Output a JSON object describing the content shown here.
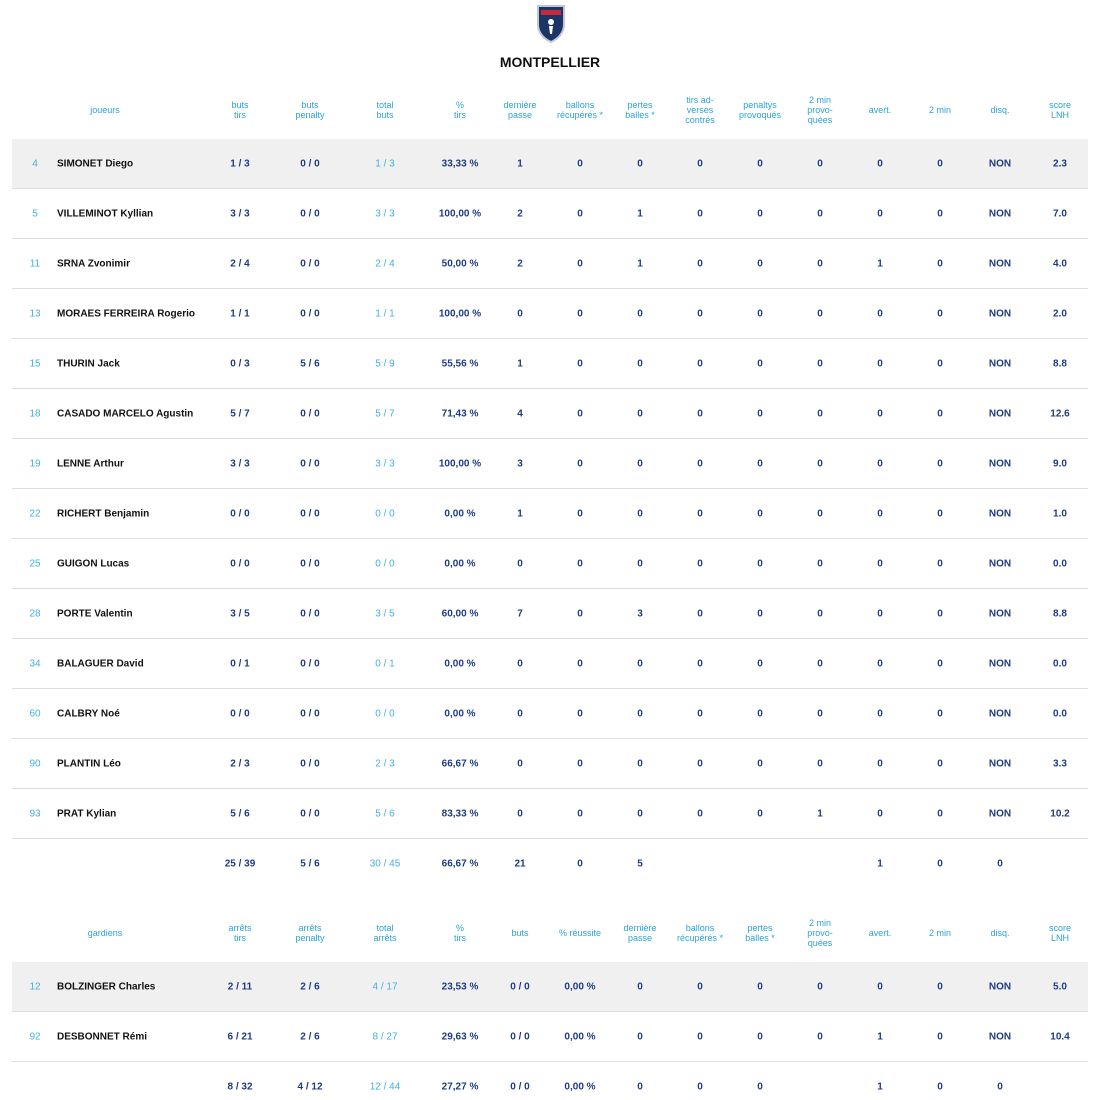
{
  "header": {
    "title": "MONTPELLIER"
  },
  "players": {
    "headers": [
      [
        "joueurs"
      ],
      [
        "buts",
        "tirs"
      ],
      [
        "buts",
        "penalty"
      ],
      [
        "total",
        "buts"
      ],
      [
        "%",
        "tirs"
      ],
      [
        "dernière",
        "passe"
      ],
      [
        "ballons",
        "récupérés *"
      ],
      [
        "pertes",
        "balles *"
      ],
      [
        "tirs ad-",
        "verses",
        "contrés"
      ],
      [
        "penaltys",
        "provoqués"
      ],
      [
        "2 min",
        "provo-",
        "quées"
      ],
      [
        "avert."
      ],
      [
        "2 min"
      ],
      [
        "disq."
      ],
      [
        "score",
        "LNH"
      ]
    ],
    "rows": [
      [
        "4",
        "SIMONET Diego",
        "1 / 3",
        "0 / 0",
        "1 / 3",
        "33,33 %",
        "1",
        "0",
        "0",
        "0",
        "0",
        "0",
        "0",
        "0",
        "NON",
        "2.3"
      ],
      [
        "5",
        "VILLEMINOT Kyllian",
        "3 / 3",
        "0 / 0",
        "3 / 3",
        "100,00 %",
        "2",
        "0",
        "1",
        "0",
        "0",
        "0",
        "0",
        "0",
        "NON",
        "7.0"
      ],
      [
        "11",
        "SRNA Zvonimir",
        "2 / 4",
        "0 / 0",
        "2 / 4",
        "50,00 %",
        "2",
        "0",
        "1",
        "0",
        "0",
        "0",
        "1",
        "0",
        "NON",
        "4.0"
      ],
      [
        "13",
        "MORAES FERREIRA Rogerio",
        "1 / 1",
        "0 / 0",
        "1 / 1",
        "100,00 %",
        "0",
        "0",
        "0",
        "0",
        "0",
        "0",
        "0",
        "0",
        "NON",
        "2.0"
      ],
      [
        "15",
        "THURIN Jack",
        "0 / 3",
        "5 / 6",
        "5 / 9",
        "55,56 %",
        "1",
        "0",
        "0",
        "0",
        "0",
        "0",
        "0",
        "0",
        "NON",
        "8.8"
      ],
      [
        "18",
        "CASADO MARCELO Agustin",
        "5 / 7",
        "0 / 0",
        "5 / 7",
        "71,43 %",
        "4",
        "0",
        "0",
        "0",
        "0",
        "0",
        "0",
        "0",
        "NON",
        "12.6"
      ],
      [
        "19",
        "LENNE Arthur",
        "3 / 3",
        "0 / 0",
        "3 / 3",
        "100,00 %",
        "3",
        "0",
        "0",
        "0",
        "0",
        "0",
        "0",
        "0",
        "NON",
        "9.0"
      ],
      [
        "22",
        "RICHERT Benjamin",
        "0 / 0",
        "0 / 0",
        "0 / 0",
        "0,00 %",
        "1",
        "0",
        "0",
        "0",
        "0",
        "0",
        "0",
        "0",
        "NON",
        "1.0"
      ],
      [
        "25",
        "GUIGON Lucas",
        "0 / 0",
        "0 / 0",
        "0 / 0",
        "0,00 %",
        "0",
        "0",
        "0",
        "0",
        "0",
        "0",
        "0",
        "0",
        "NON",
        "0.0"
      ],
      [
        "28",
        "PORTE Valentin",
        "3 / 5",
        "0 / 0",
        "3 / 5",
        "60,00 %",
        "7",
        "0",
        "3",
        "0",
        "0",
        "0",
        "0",
        "0",
        "NON",
        "8.8"
      ],
      [
        "34",
        "BALAGUER David",
        "0 / 1",
        "0 / 0",
        "0 / 1",
        "0,00 %",
        "0",
        "0",
        "0",
        "0",
        "0",
        "0",
        "0",
        "0",
        "NON",
        "0.0"
      ],
      [
        "60",
        "CALBRY Noé",
        "0 / 0",
        "0 / 0",
        "0 / 0",
        "0,00 %",
        "0",
        "0",
        "0",
        "0",
        "0",
        "0",
        "0",
        "0",
        "NON",
        "0.0"
      ],
      [
        "90",
        "PLANTIN Léo",
        "2 / 3",
        "0 / 0",
        "2 / 3",
        "66,67 %",
        "0",
        "0",
        "0",
        "0",
        "0",
        "0",
        "0",
        "0",
        "NON",
        "3.3"
      ],
      [
        "93",
        "PRAT Kylian",
        "5 / 6",
        "0 / 0",
        "5 / 6",
        "83,33 %",
        "0",
        "0",
        "0",
        "0",
        "0",
        "1",
        "0",
        "0",
        "NON",
        "10.2"
      ]
    ],
    "totals": [
      "25 / 39",
      "5 / 6",
      "30 / 45",
      "66,67 %",
      "21",
      "0",
      "5",
      null,
      null,
      null,
      "1",
      "0",
      "0",
      null
    ]
  },
  "goalies": {
    "headers": [
      [
        "gardiens"
      ],
      [
        "arrêts",
        "tirs"
      ],
      [
        "arrêts",
        "penalty"
      ],
      [
        "total",
        "arrêts"
      ],
      [
        "%",
        "tirs"
      ],
      [
        "buts"
      ],
      [
        "% réussite"
      ],
      [
        "dernière",
        "passe"
      ],
      [
        "ballons",
        "récupérés *"
      ],
      [
        "pertes",
        "balles *"
      ],
      [
        "2 min",
        "provo-",
        "quées"
      ],
      [
        "avert."
      ],
      [
        "2 min"
      ],
      [
        "disq."
      ],
      [
        "score",
        "LNH"
      ]
    ],
    "rows": [
      [
        "12",
        "BOLZINGER Charles",
        "2 / 11",
        "2 / 6",
        "4 / 17",
        "23,53 %",
        "0 / 0",
        "0,00 %",
        "0",
        "0",
        "0",
        "0",
        "0",
        "0",
        "NON",
        "5.0"
      ],
      [
        "92",
        "DESBONNET Rémi",
        "6 / 21",
        "2 / 6",
        "8 / 27",
        "29,63 %",
        "0 / 0",
        "0,00 %",
        "0",
        "0",
        "0",
        "0",
        "1",
        "0",
        "NON",
        "10.4"
      ]
    ],
    "totals": [
      "8 / 32",
      "4 / 12",
      "12 / 44",
      "27,27 %",
      "0 / 0",
      "0,00 %",
      "0",
      "0",
      "0",
      null,
      "1",
      "0",
      "0",
      null
    ]
  }
}
